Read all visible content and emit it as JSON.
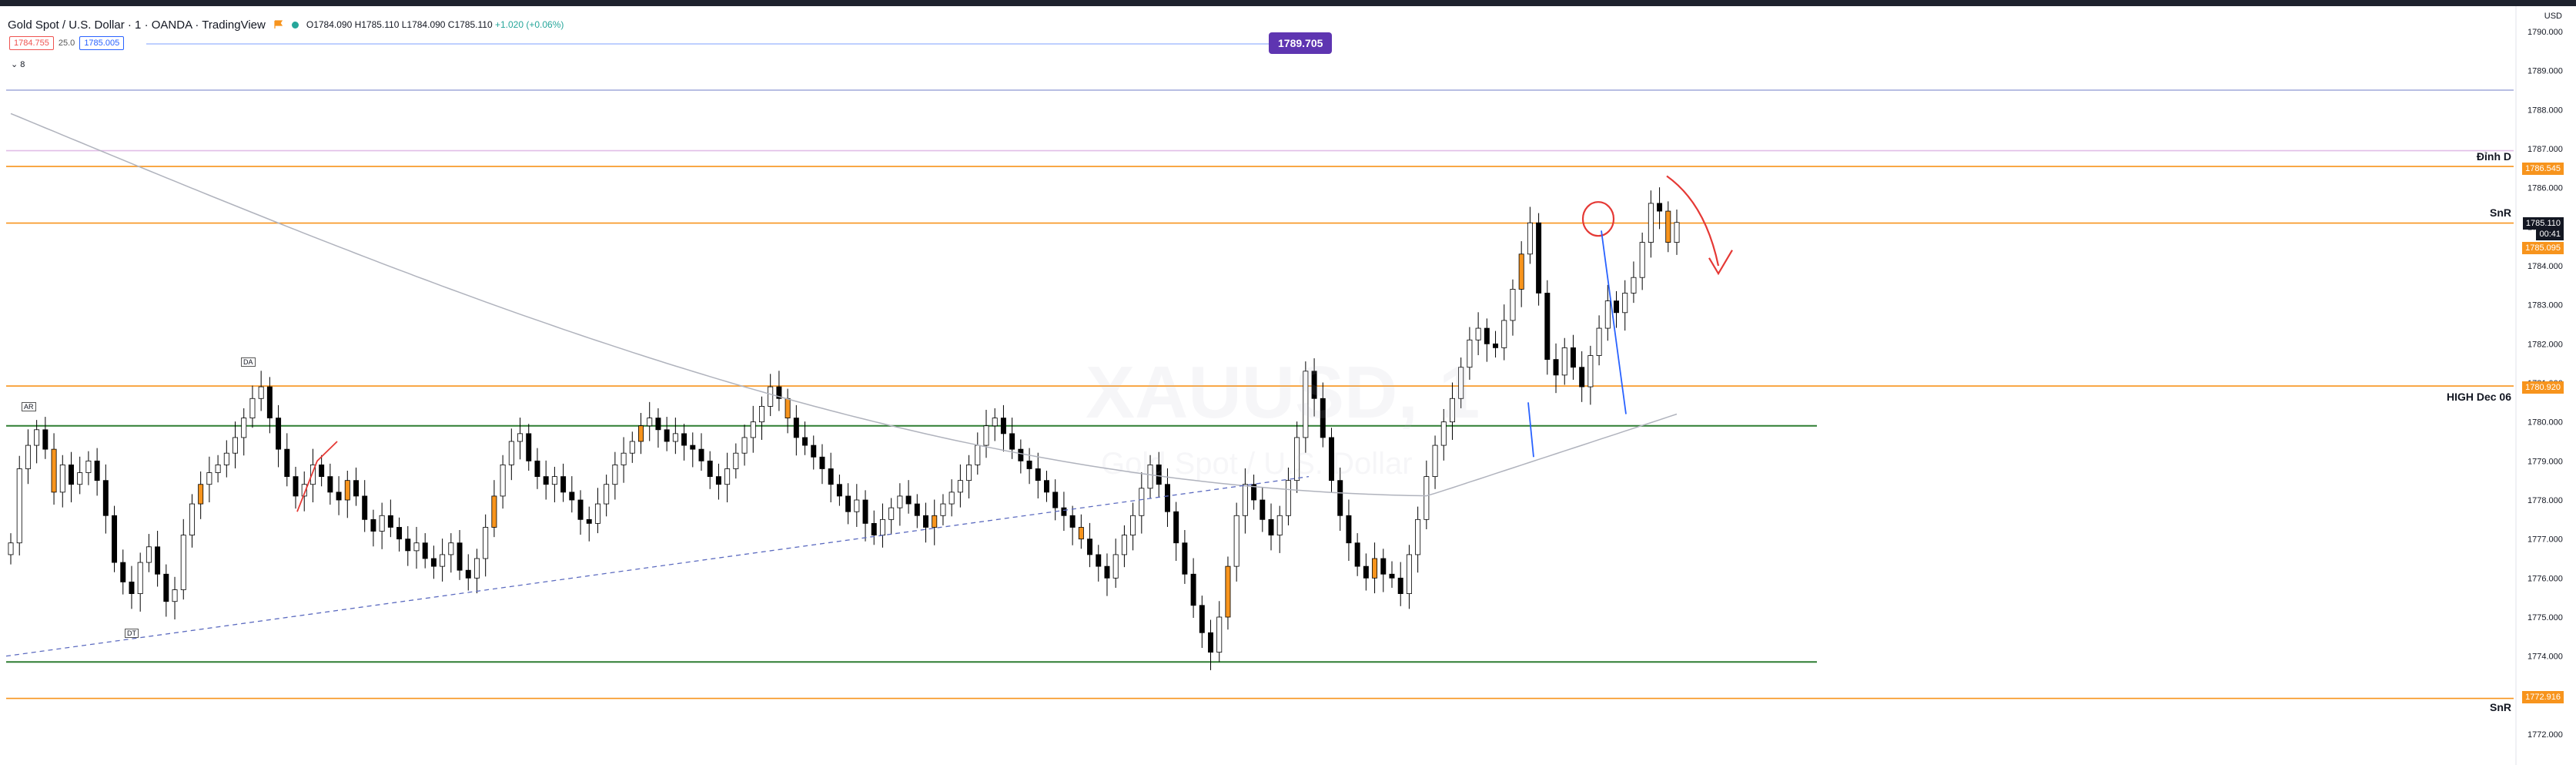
{
  "header": {
    "title": "Gold Spot / U.S. Dollar · 1 · OANDA · TradingView",
    "ohlc": "O1784.090 H1785.110 L1784.090 C1785.110",
    "change": "+1.020 (+0.06%)"
  },
  "trade": {
    "sell": "1784.755",
    "spread": "25.0",
    "buy": "1785.005"
  },
  "indicators_label": "8",
  "hint_price": "1789.705",
  "watermark": {
    "symbol": "XAUUSD, 1",
    "name": "Gold Spot / U.S. Dollar"
  },
  "axis_unit": "USD",
  "colors": {
    "up": "#ffffff",
    "down": "#000000",
    "accent_orange": "#f7941d",
    "green_line": "#2e7d32",
    "blue_line": "#2962ff",
    "red_mark": "#e53935"
  },
  "annotations": {
    "dinh_d": "Đỉnh D",
    "snr_top": "SnR",
    "high_dec06": "HIGH Dec 06",
    "snr_bottom": "SnR"
  },
  "price_tags": {
    "dinh_d": "1786.545",
    "last": "1785.110",
    "countdown": "00:41",
    "snr": "1785.095",
    "high_dec06": "1780.920",
    "snr_bottom": "1772.916"
  },
  "mini_labels": {
    "a": "AR",
    "b": "DA",
    "c": "DT"
  },
  "chart_data": {
    "type": "candlestick",
    "y_axis_ticks": [
      "1790.000",
      "1789.000",
      "1788.000",
      "1787.000",
      "1786.000",
      "1785.000",
      "1784.000",
      "1783.000",
      "1782.000",
      "1781.000",
      "1780.000",
      "1779.000",
      "1778.000",
      "1777.000",
      "1776.000",
      "1775.000",
      "1774.000",
      "1773.000",
      "1772.000"
    ],
    "ylim": [
      1771.7,
      1790.3
    ],
    "horizontal_levels": [
      {
        "price": 1788.5,
        "color": "#9fa8da"
      },
      {
        "price": 1786.95,
        "color": "#e1bee7"
      },
      {
        "price": 1786.545,
        "color": "#f7941d"
      },
      {
        "price": 1785.095,
        "color": "#f7941d"
      },
      {
        "price": 1780.92,
        "color": "#f7941d"
      },
      {
        "price": 1779.9,
        "color": "#2e7d32"
      },
      {
        "price": 1773.85,
        "color": "#2e7d32"
      },
      {
        "price": 1772.916,
        "color": "#f7941d"
      }
    ],
    "closes": [
      1776.9,
      1778.8,
      1779.4,
      1779.8,
      1779.3,
      1778.2,
      1778.9,
      1778.4,
      1778.7,
      1779.0,
      1778.5,
      1777.6,
      1776.4,
      1775.9,
      1775.6,
      1776.4,
      1776.8,
      1776.1,
      1775.4,
      1775.7,
      1777.1,
      1777.9,
      1778.4,
      1778.7,
      1778.9,
      1779.2,
      1779.6,
      1780.1,
      1780.6,
      1780.9,
      1780.1,
      1779.3,
      1778.6,
      1778.1,
      1778.4,
      1778.9,
      1778.6,
      1778.2,
      1778.0,
      1778.5,
      1778.1,
      1777.5,
      1777.2,
      1777.6,
      1777.3,
      1777.0,
      1776.7,
      1776.9,
      1776.5,
      1776.3,
      1776.6,
      1776.9,
      1776.2,
      1776.0,
      1776.5,
      1777.3,
      1778.1,
      1778.9,
      1779.5,
      1779.7,
      1779.0,
      1778.6,
      1778.4,
      1778.6,
      1778.2,
      1778.0,
      1777.5,
      1777.4,
      1777.9,
      1778.4,
      1778.9,
      1779.2,
      1779.5,
      1779.9,
      1780.1,
      1779.8,
      1779.5,
      1779.7,
      1779.4,
      1779.3,
      1779.0,
      1778.6,
      1778.4,
      1778.8,
      1779.2,
      1779.6,
      1780.0,
      1780.4,
      1780.9,
      1780.6,
      1780.1,
      1779.6,
      1779.4,
      1779.1,
      1778.8,
      1778.4,
      1778.1,
      1777.7,
      1778.0,
      1777.4,
      1777.1,
      1777.5,
      1777.8,
      1778.1,
      1777.9,
      1777.6,
      1777.3,
      1777.6,
      1777.9,
      1778.2,
      1778.5,
      1778.9,
      1779.4,
      1779.9,
      1780.1,
      1779.7,
      1779.3,
      1779.0,
      1778.8,
      1778.5,
      1778.2,
      1777.8,
      1777.6,
      1777.3,
      1777.0,
      1776.6,
      1776.3,
      1776.0,
      1776.6,
      1777.1,
      1777.6,
      1778.3,
      1778.9,
      1778.4,
      1777.7,
      1776.9,
      1776.1,
      1775.3,
      1774.6,
      1774.1,
      1775.0,
      1776.3,
      1777.6,
      1778.4,
      1778.0,
      1777.5,
      1777.1,
      1777.6,
      1778.5,
      1779.6,
      1781.3,
      1780.6,
      1779.6,
      1778.5,
      1777.6,
      1776.9,
      1776.3,
      1776.0,
      1776.5,
      1776.1,
      1776.0,
      1775.6,
      1776.6,
      1777.5,
      1778.6,
      1779.4,
      1780.0,
      1780.6,
      1781.4,
      1782.1,
      1782.4,
      1782.0,
      1781.9,
      1782.6,
      1783.4,
      1784.3,
      1785.1,
      1783.3,
      1781.6,
      1781.2,
      1781.9,
      1781.4,
      1780.9,
      1781.7,
      1782.4,
      1783.1,
      1782.8,
      1783.3,
      1783.7,
      1784.6,
      1785.6,
      1785.4,
      1784.6,
      1785.11
    ]
  }
}
